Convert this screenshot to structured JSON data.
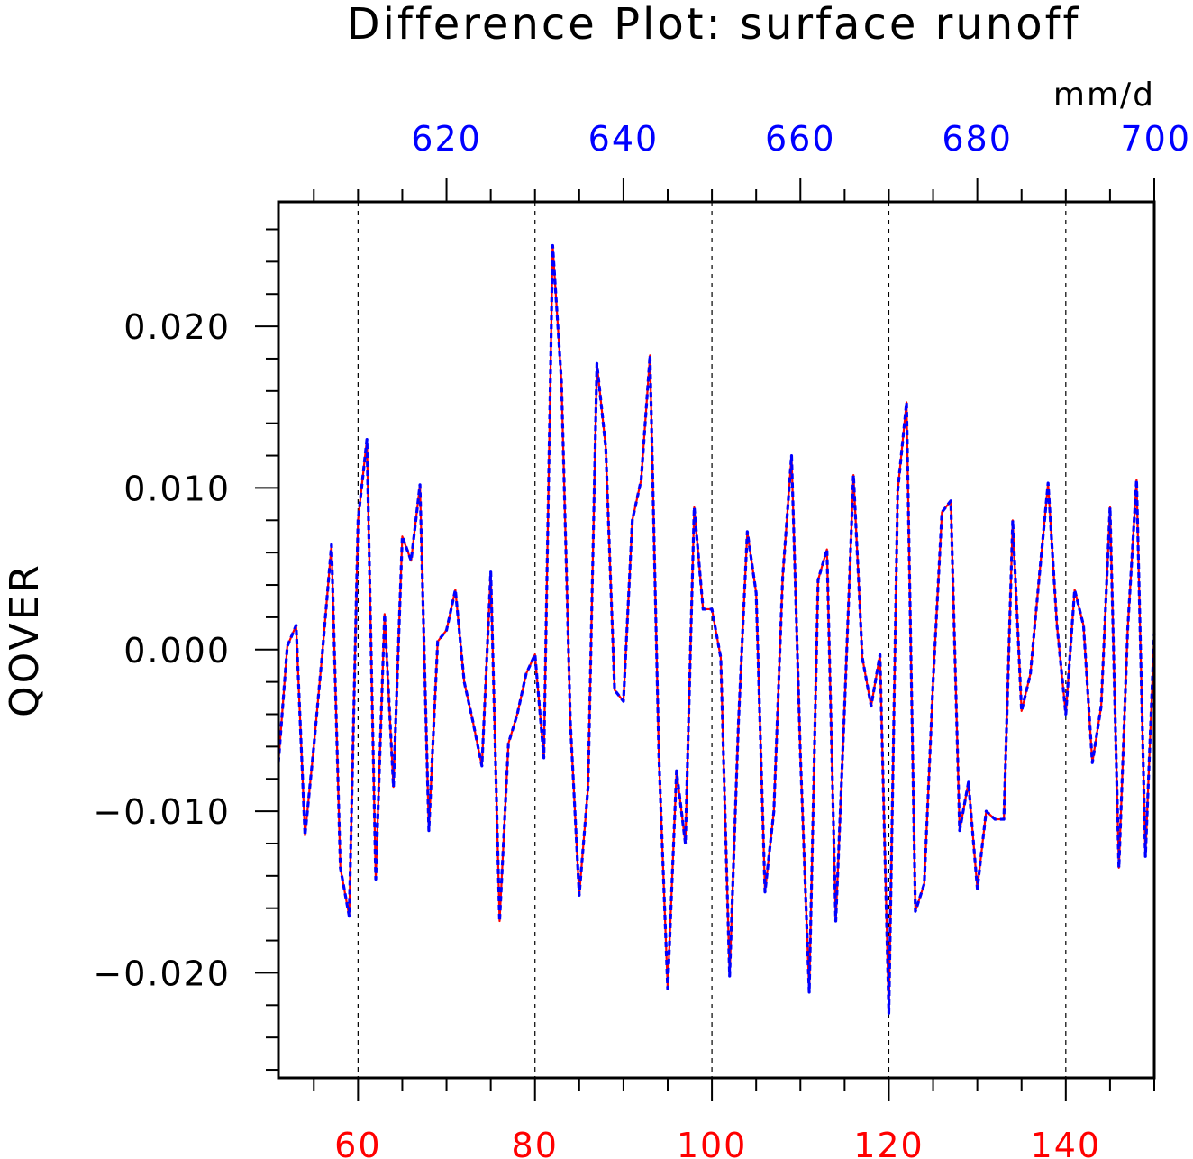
{
  "chart_data": {
    "type": "line",
    "title": "Difference Plot: surface runoff",
    "units": "mm/d",
    "ylabel": "QOVER",
    "ylim": [
      -0.0265,
      0.0277
    ],
    "yticks": [
      -0.02,
      -0.01,
      0.0,
      0.01,
      0.02
    ],
    "ytick_labels": [
      "−0.020",
      "−0.010",
      "0.000",
      "0.010",
      "0.020"
    ],
    "y_minor_step": 0.002,
    "grid": "vertical dashed at major bottom-axis ticks",
    "bottom_axis": {
      "color": "#ff0000",
      "range": [
        51,
        150
      ],
      "ticks": [
        60,
        80,
        100,
        120,
        140
      ],
      "tick_labels": [
        "60",
        "80",
        "100",
        "120",
        "140"
      ],
      "minor_step": 5
    },
    "top_axis": {
      "color": "#0000ff",
      "range": [
        601,
        700
      ],
      "ticks": [
        620,
        640,
        660,
        680,
        700
      ],
      "tick_labels": [
        "620",
        "640",
        "660",
        "680",
        "700"
      ],
      "minor_step": 5
    },
    "series": [
      {
        "color": "#ff0000",
        "style": "solid",
        "x": [
          51,
          52,
          53,
          54,
          55,
          56,
          57,
          58,
          59,
          60,
          61,
          62,
          63,
          64,
          65,
          66,
          67,
          68,
          69,
          70,
          71,
          72,
          73,
          74,
          75,
          76,
          77,
          78,
          79,
          80,
          81,
          82,
          83,
          84,
          85,
          86,
          87,
          88,
          89,
          90,
          91,
          92,
          93,
          94,
          95,
          96,
          97,
          98,
          99,
          100,
          101,
          102,
          103,
          104,
          105,
          106,
          107,
          108,
          109,
          110,
          111,
          112,
          113,
          114,
          115,
          116,
          117,
          118,
          119,
          120,
          121,
          122,
          123,
          124,
          125,
          126,
          127,
          128,
          129,
          130,
          131,
          132,
          133,
          134,
          135,
          136,
          137,
          138,
          139,
          140,
          141,
          142,
          143,
          144,
          145,
          146,
          147,
          148,
          149,
          150
        ],
        "y": [
          -0.007,
          0.0002,
          0.0015,
          -0.0115,
          -0.006,
          0.0,
          0.0065,
          -0.0135,
          -0.0165,
          0.008,
          0.013,
          -0.0142,
          0.0022,
          -0.0085,
          0.007,
          0.0055,
          0.0102,
          -0.0112,
          0.0005,
          0.0012,
          0.0037,
          -0.002,
          -0.0045,
          -0.0072,
          0.0048,
          -0.0168,
          -0.0058,
          -0.004,
          -0.0015,
          -0.0003,
          -0.0067,
          0.025,
          0.0165,
          -0.0045,
          -0.0152,
          -0.0085,
          0.0177,
          0.0125,
          -0.0025,
          -0.0032,
          0.008,
          0.0105,
          0.0182,
          -0.0065,
          -0.021,
          -0.0075,
          -0.012,
          0.0088,
          0.0025,
          0.0025,
          -0.0005,
          -0.0202,
          -0.0045,
          0.0073,
          0.0035,
          -0.015,
          -0.01,
          0.0045,
          0.012,
          -0.0065,
          -0.0212,
          0.0043,
          0.0062,
          -0.0168,
          -0.0035,
          0.0108,
          -0.0005,
          -0.0035,
          -0.0003,
          -0.0225,
          0.0098,
          0.0153,
          -0.0162,
          -0.0145,
          -0.002,
          0.0085,
          0.0092,
          -0.0112,
          -0.0082,
          -0.0148,
          -0.01,
          -0.0105,
          -0.0105,
          0.008,
          -0.0038,
          -0.0015,
          0.0045,
          0.0103,
          0.0015,
          -0.004,
          0.0037,
          0.0015,
          -0.007,
          -0.0035,
          0.0088,
          -0.0135,
          0.0013,
          0.0105,
          -0.0128,
          0.001
        ]
      },
      {
        "color": "#0000ff",
        "style": "dashed",
        "x": [
          51,
          52,
          53,
          54,
          55,
          56,
          57,
          58,
          59,
          60,
          61,
          62,
          63,
          64,
          65,
          66,
          67,
          68,
          69,
          70,
          71,
          72,
          73,
          74,
          75,
          76,
          77,
          78,
          79,
          80,
          81,
          82,
          83,
          84,
          85,
          86,
          87,
          88,
          89,
          90,
          91,
          92,
          93,
          94,
          95,
          96,
          97,
          98,
          99,
          100,
          101,
          102,
          103,
          104,
          105,
          106,
          107,
          108,
          109,
          110,
          111,
          112,
          113,
          114,
          115,
          116,
          117,
          118,
          119,
          120,
          121,
          122,
          123,
          124,
          125,
          126,
          127,
          128,
          129,
          130,
          131,
          132,
          133,
          134,
          135,
          136,
          137,
          138,
          139,
          140,
          141,
          142,
          143,
          144,
          145,
          146,
          147,
          148,
          149,
          150
        ],
        "y": [
          -0.007,
          0.0002,
          0.0015,
          -0.0115,
          -0.006,
          0.0,
          0.0065,
          -0.0135,
          -0.0165,
          0.008,
          0.013,
          -0.0142,
          0.0022,
          -0.0085,
          0.007,
          0.0055,
          0.0102,
          -0.0112,
          0.0005,
          0.0012,
          0.0037,
          -0.002,
          -0.0045,
          -0.0072,
          0.0048,
          -0.0168,
          -0.0058,
          -0.004,
          -0.0015,
          -0.0003,
          -0.0067,
          0.025,
          0.0165,
          -0.0045,
          -0.0152,
          -0.0085,
          0.0177,
          0.0125,
          -0.0025,
          -0.0032,
          0.008,
          0.0105,
          0.0182,
          -0.0065,
          -0.021,
          -0.0075,
          -0.012,
          0.0088,
          0.0025,
          0.0025,
          -0.0005,
          -0.0202,
          -0.0045,
          0.0073,
          0.0035,
          -0.015,
          -0.01,
          0.0045,
          0.012,
          -0.0065,
          -0.0212,
          0.0043,
          0.0062,
          -0.0168,
          -0.0035,
          0.0108,
          -0.0005,
          -0.0035,
          -0.0003,
          -0.0225,
          0.0098,
          0.0153,
          -0.0162,
          -0.0145,
          -0.002,
          0.0085,
          0.0092,
          -0.0112,
          -0.0082,
          -0.0148,
          -0.01,
          -0.0105,
          -0.0105,
          0.008,
          -0.0038,
          -0.0015,
          0.0045,
          0.0103,
          0.0015,
          -0.004,
          0.0037,
          0.0015,
          -0.007,
          -0.0035,
          0.0088,
          -0.0135,
          0.0013,
          0.0105,
          -0.0128,
          0.001
        ]
      }
    ]
  }
}
